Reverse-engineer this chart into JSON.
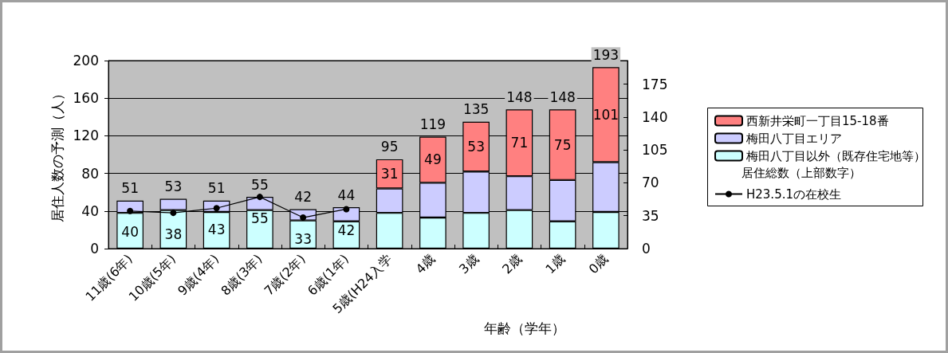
{
  "chart_data": {
    "type": "bar",
    "stacked": true,
    "xlabel": "年齢（学年）",
    "ylabel": "居住人数の予測（人）",
    "categories": [
      "11歳(6年)",
      "10歳(5年)",
      "9歳(4年)",
      "8歳(3年)",
      "7歳(2年)",
      "6歳(1年)",
      "5歳(H24入学",
      "4歳",
      "3歳",
      "2歳",
      "1歳",
      "0歳"
    ],
    "series": [
      {
        "name": "梅田八丁目以外（既存住宅地等）",
        "color": "#ccffff",
        "values": [
          38,
          41,
          39,
          41,
          30,
          29,
          38,
          33,
          38,
          41,
          29,
          39
        ]
      },
      {
        "name": "梅田八丁目エリア",
        "color": "#ccccff",
        "values": [
          13,
          12,
          12,
          14,
          12,
          15,
          26,
          37,
          44,
          36,
          44,
          53
        ]
      },
      {
        "name": "西新井栄町一丁目15-18番",
        "color": "#ff8080",
        "values": [
          null,
          null,
          null,
          null,
          null,
          null,
          31,
          49,
          53,
          71,
          75,
          101
        ],
        "value_labels": [
          null,
          null,
          null,
          null,
          null,
          null,
          "31",
          "49",
          "53",
          "71",
          "75",
          "101"
        ]
      },
      {
        "name": "H23.5.1の在校生",
        "type": "line",
        "color": "#000000",
        "marker": "circle",
        "values": [
          40,
          38,
          43,
          55,
          33,
          42,
          null,
          null,
          null,
          null,
          null,
          null
        ],
        "value_labels": [
          "40",
          "38",
          "43",
          "55",
          "33",
          "42",
          null,
          null,
          null,
          null,
          null,
          null
        ]
      }
    ],
    "totals": [
      "51",
      "53",
      "51",
      "55",
      "42",
      "44",
      "95",
      "119",
      "135",
      "148",
      "148",
      "193"
    ],
    "annotations": [
      "居住総数（上部数字）"
    ],
    "ylim": [
      0,
      200
    ],
    "yticks": [
      0,
      40,
      80,
      120,
      160,
      200
    ],
    "y2lim": [
      0,
      200
    ],
    "y2ticks": [
      0,
      35,
      70,
      105,
      140,
      175
    ],
    "grid": "y",
    "legend": "right"
  }
}
